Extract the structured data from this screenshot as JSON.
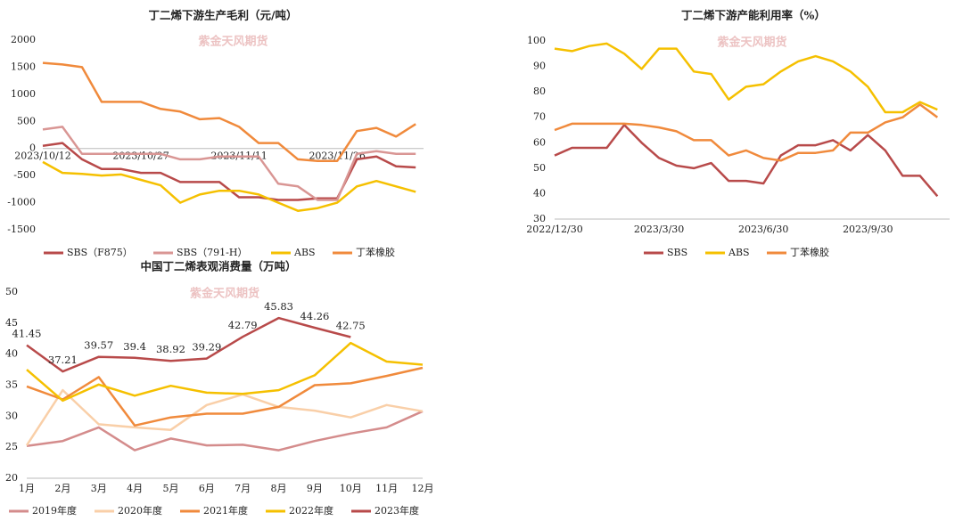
{
  "chart_data": [
    {
      "type": "line",
      "title": "丁二烯下游生产毛利（元/吨）",
      "watermark": "紫金天风期货",
      "categories": [
        "2023/10/12",
        null,
        null,
        null,
        null,
        "2023/10/27",
        null,
        null,
        null,
        null,
        "2023/11/11",
        null,
        null,
        null,
        null,
        "2023/11/26",
        null,
        null,
        null,
        null
      ],
      "ylim": [
        -1500,
        2000
      ],
      "yticks": [
        -1500,
        -1000,
        -500,
        0,
        500,
        1000,
        1500,
        2000
      ],
      "series": [
        {
          "name": "SBS（F875）",
          "color": "#b84a4a",
          "values": [
            50,
            100,
            -200,
            -380,
            -380,
            -450,
            -450,
            -620,
            -620,
            -620,
            -900,
            -900,
            -950,
            -950,
            -920,
            -920,
            -200,
            -150,
            -330,
            -350
          ]
        },
        {
          "name": "SBS（791-H）",
          "color": "#d99694",
          "values": [
            350,
            400,
            -100,
            -100,
            -100,
            -100,
            -100,
            -200,
            -200,
            -150,
            -150,
            -150,
            -650,
            -700,
            -950,
            -950,
            -100,
            -50,
            -100,
            -100
          ]
        },
        {
          "name": "ABS",
          "color": "#f5c000",
          "values": [
            -250,
            -450,
            -470,
            -500,
            -480,
            -580,
            -680,
            -1000,
            -850,
            -780,
            -780,
            -850,
            -1000,
            -1150,
            -1100,
            -1000,
            -700,
            -600,
            -700,
            -800
          ]
        },
        {
          "name": "丁苯橡胶",
          "color": "#f08a3c",
          "values": [
            1580,
            1550,
            1500,
            860,
            860,
            860,
            730,
            680,
            540,
            560,
            400,
            100,
            100,
            -200,
            -230,
            -230,
            320,
            380,
            220,
            450
          ]
        }
      ]
    },
    {
      "type": "line",
      "title": "丁二烯下游产能利用率（%）",
      "watermark": "紫金天风期货",
      "categories": [
        "2022/12/30",
        null,
        null,
        null,
        null,
        null,
        "2023/3/30",
        null,
        null,
        null,
        null,
        null,
        "2023/6/30",
        null,
        null,
        null,
        null,
        null,
        "2023/9/30",
        null,
        null,
        null,
        null
      ],
      "ylim": [
        30,
        100
      ],
      "yticks": [
        30,
        40,
        50,
        60,
        70,
        80,
        90,
        100
      ],
      "series": [
        {
          "name": "SBS",
          "color": "#b84a4a",
          "values": [
            55,
            58,
            58,
            58,
            67,
            60,
            54,
            51,
            50,
            52,
            45,
            45,
            44,
            55,
            59,
            59,
            61,
            57,
            63,
            57,
            47,
            47,
            39
          ]
        },
        {
          "name": "ABS",
          "color": "#f5c000",
          "values": [
            97,
            96,
            98,
            99,
            95,
            89,
            97,
            97,
            88,
            87,
            77,
            82,
            83,
            88,
            92,
            94,
            92,
            88,
            82,
            72,
            72,
            76,
            73
          ]
        },
        {
          "name": "丁苯橡胶",
          "color": "#f08a3c",
          "values": [
            65,
            67.5,
            67.5,
            67.5,
            67.5,
            67,
            66,
            64.5,
            61,
            61,
            55,
            57,
            54,
            53,
            56,
            56,
            57,
            64,
            64,
            68,
            70,
            75,
            70
          ]
        }
      ]
    },
    {
      "type": "line",
      "title": "中国丁二烯表观消费量（万吨）",
      "watermark": "紫金天风期货",
      "categories": [
        "1月",
        "2月",
        "3月",
        "4月",
        "5月",
        "6月",
        "7月",
        "8月",
        "9月",
        "10月",
        "11月",
        "12月"
      ],
      "ylim": [
        20,
        50
      ],
      "yticks": [
        20,
        25,
        30,
        35,
        40,
        45,
        50
      ],
      "series": [
        {
          "name": "2019年度",
          "color": "#d48c8c",
          "values": [
            25.2,
            26,
            28.2,
            24.5,
            26.4,
            25.3,
            25.4,
            24.5,
            26,
            27.2,
            28.2,
            30.8
          ]
        },
        {
          "name": "2020年度",
          "color": "#f9cfa8",
          "values": [
            25.3,
            34.2,
            28.7,
            28.2,
            27.8,
            31.8,
            33.5,
            31.5,
            30.9,
            29.8,
            31.8,
            30.8
          ]
        },
        {
          "name": "2021年度",
          "color": "#f08a3c",
          "values": [
            34.8,
            32.7,
            36.3,
            28.5,
            29.8,
            30.4,
            30.4,
            31.5,
            35,
            35.3,
            36.5,
            37.8
          ]
        },
        {
          "name": "2022年度",
          "color": "#f5c000",
          "values": [
            37.5,
            32.5,
            35.1,
            33.3,
            34.9,
            33.8,
            33.6,
            34.2,
            36.6,
            41.8,
            38.8,
            38.3
          ]
        },
        {
          "name": "2023年度",
          "color": "#b84a4a",
          "data_labels": true,
          "values": [
            41.45,
            37.21,
            39.57,
            39.4,
            38.92,
            39.29,
            42.79,
            45.83,
            44.26,
            42.75,
            null,
            null
          ]
        }
      ]
    }
  ]
}
